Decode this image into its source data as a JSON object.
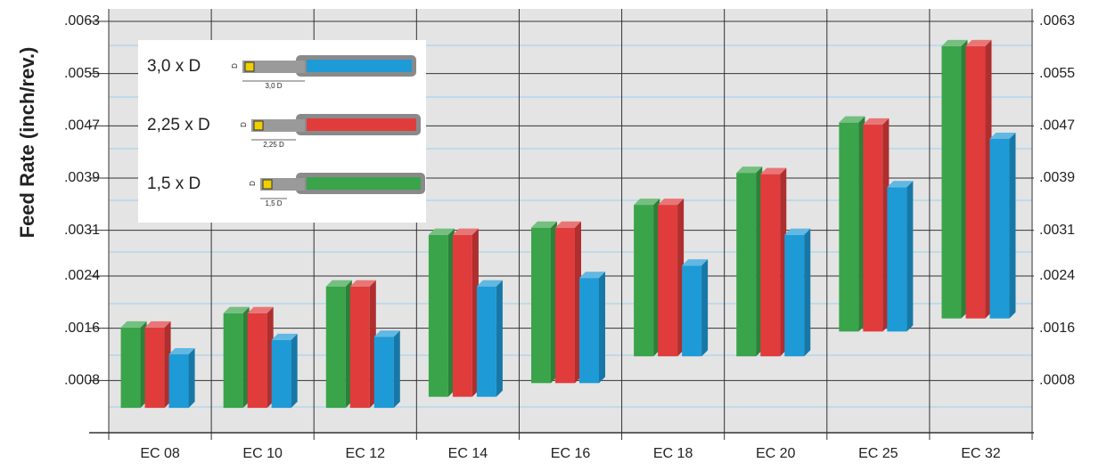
{
  "chart_data": {
    "type": "floating-bar",
    "y_label": "Feed Rate (inch/rev.)",
    "categories": [
      "EC 08",
      "EC 10",
      "EC 12",
      "EC 14",
      "EC 16",
      "EC 18",
      "EC 20",
      "EC 25",
      "EC 32"
    ],
    "series": [
      {
        "name": "1,5 x D",
        "color": "#3aa44a",
        "dimension_label": "1,5 D",
        "low": [
          0.00038,
          0.00038,
          0.00038,
          0.00055,
          0.00076,
          0.00117,
          0.00117,
          0.00155,
          0.00175
        ],
        "high": [
          0.00161,
          0.00183,
          0.00224,
          0.00303,
          0.00314,
          0.00349,
          0.00398,
          0.00475,
          0.00592
        ]
      },
      {
        "name": "2,25 x D",
        "color": "#e03c3c",
        "dimension_label": "2,25 D",
        "low": [
          0.00038,
          0.00038,
          0.00038,
          0.00055,
          0.00076,
          0.00117,
          0.00117,
          0.00155,
          0.00175
        ],
        "high": [
          0.00161,
          0.00183,
          0.00224,
          0.00303,
          0.00314,
          0.00349,
          0.00396,
          0.00472,
          0.00592
        ]
      },
      {
        "name": "3,0 x D",
        "color": "#1e9ad6",
        "dimension_label": "3,0 D",
        "low": [
          0.00038,
          0.00038,
          0.00038,
          0.00055,
          0.00076,
          0.00117,
          0.00117,
          0.00155,
          0.00175
        ],
        "high": [
          0.0012,
          0.00142,
          0.00147,
          0.00224,
          0.00237,
          0.00256,
          0.00303,
          0.00376,
          0.0045
        ]
      }
    ],
    "diameter_label": "D",
    "ylim": [
      0,
      0.0063
    ],
    "yticks": [
      {
        "value": 0.0008,
        "label": ".0008"
      },
      {
        "value": 0.0016,
        "label": ".0016"
      },
      {
        "value": 0.0024,
        "label": ".0024"
      },
      {
        "value": 0.0031,
        "label": ".0031"
      },
      {
        "value": 0.0039,
        "label": ".0039"
      },
      {
        "value": 0.0047,
        "label": ".0047"
      },
      {
        "value": 0.0055,
        "label": ".0055"
      },
      {
        "value": 0.0063,
        "label": ".0063"
      }
    ],
    "grid": true
  }
}
